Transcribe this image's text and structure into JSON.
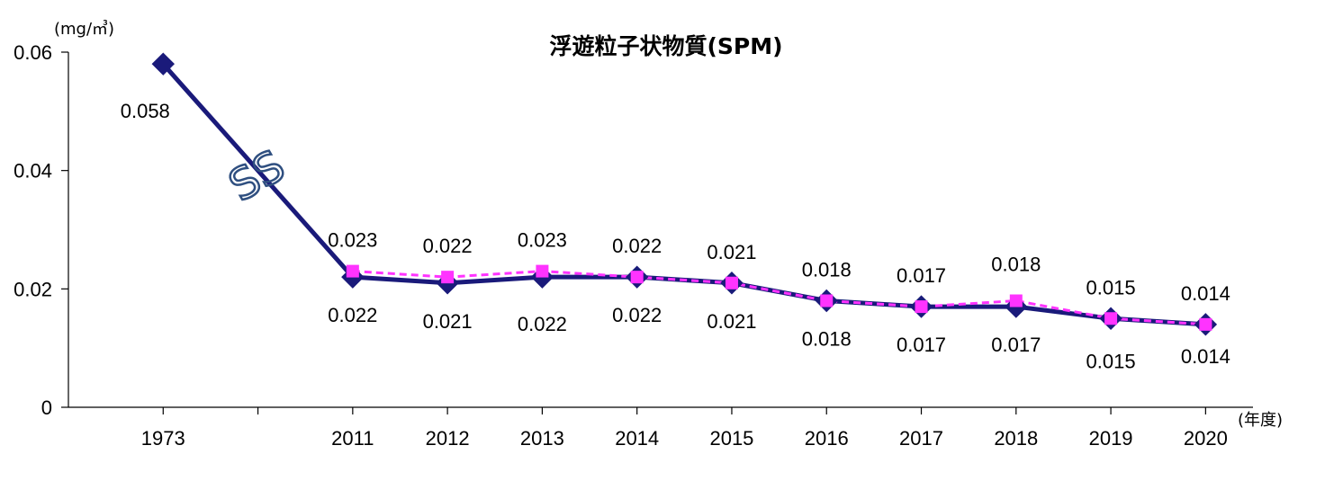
{
  "chart_data": {
    "type": "line",
    "title": "浮遊粒子状物質(SPM)",
    "ylabel": "(mg/㎥)",
    "xlabel": "(年度)",
    "ylim": [
      0,
      0.06
    ],
    "yticks": [
      "0",
      "0.02",
      "0.04",
      "0.06"
    ],
    "categories": [
      "1973",
      "",
      "2011",
      "2012",
      "2013",
      "2014",
      "2015",
      "2016",
      "2017",
      "2018",
      "2019",
      "2020"
    ],
    "axis_break": "SS",
    "series": [
      {
        "color": "#1a1a7a",
        "marker": "diamond",
        "line": "solid",
        "values": [
          0.058,
          null,
          0.022,
          0.021,
          0.022,
          0.022,
          0.021,
          0.018,
          0.017,
          0.017,
          0.015,
          0.014
        ],
        "labels": [
          "0.058",
          "",
          "0.022",
          "0.021",
          "0.022",
          "0.022",
          "0.021",
          "0.018",
          "0.017",
          "0.017",
          "0.015",
          "0.014"
        ]
      },
      {
        "color": "#ff33ff",
        "marker": "square",
        "line": "dashed",
        "values": [
          null,
          null,
          0.023,
          0.022,
          0.023,
          0.022,
          0.021,
          0.018,
          0.017,
          0.018,
          0.015,
          0.014
        ],
        "labels": [
          "",
          "",
          "0.023",
          "0.022",
          "0.023",
          "0.022",
          "0.021",
          "0.018",
          "0.017",
          "0.018",
          "0.015",
          "0.014"
        ]
      }
    ]
  }
}
